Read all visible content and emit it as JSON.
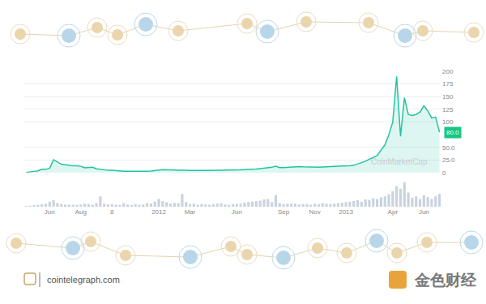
{
  "chart_data": {
    "type": "line",
    "categories": [
      null,
      null,
      null,
      null,
      null,
      null,
      "Jun",
      null,
      null,
      null,
      null,
      null,
      null,
      null,
      "Aug",
      null,
      null,
      null,
      null,
      null,
      null,
      null,
      "8",
      null,
      null,
      null,
      null,
      null,
      null,
      null,
      null,
      null,
      null,
      null,
      "2012",
      null,
      null,
      null,
      null,
      null,
      null,
      null,
      "Mar",
      null,
      null,
      null,
      null,
      null,
      null,
      null,
      null,
      null,
      null,
      null,
      "Jun",
      null,
      null,
      null,
      null,
      null,
      null,
      null,
      null,
      null,
      null,
      null,
      "Sep",
      null,
      null,
      null,
      null,
      null,
      null,
      null,
      "Nov",
      null,
      null,
      null,
      null,
      null,
      null,
      null,
      "2013",
      null,
      null,
      null,
      null,
      null,
      null,
      null,
      null,
      null,
      null,
      null,
      "Apr",
      null,
      null,
      null,
      null,
      null,
      null,
      null,
      "Jun",
      null,
      null,
      null,
      null
    ],
    "series": [
      {
        "type": "line",
        "color": "#22c3a0",
        "values": [
          1,
          1.5,
          3,
          4,
          7,
          7,
          9,
          26,
          22,
          17,
          16,
          14.5,
          14,
          14,
          13,
          10,
          11,
          11,
          8,
          7,
          5,
          5,
          5,
          4,
          3.5,
          3,
          3.2,
          3,
          2.5,
          2.5,
          3,
          3,
          3.5,
          4,
          5.5,
          6.5,
          6.5,
          6,
          5.5,
          5,
          4.5,
          5,
          4.8,
          5,
          5,
          4.8,
          4.9,
          4.9,
          5,
          5.1,
          5,
          5,
          5.1,
          5.2,
          5.3,
          5.8,
          6.5,
          6.7,
          6.8,
          7.5,
          8.5,
          9,
          10,
          11,
          13,
          10.5,
          10.5,
          11,
          12,
          12.3,
          12.5,
          12,
          11.8,
          10.8,
          10.7,
          11,
          11.5,
          12.2,
          12.7,
          13.3,
          13.3,
          13.5,
          13.5,
          14,
          15,
          17.5,
          20,
          23,
          27,
          30,
          34,
          45,
          55,
          75,
          100,
          190,
          72,
          148,
          115,
          113,
          115,
          120,
          132,
          122,
          108,
          110,
          80
        ]
      },
      {
        "type": "bar",
        "axis": "y2",
        "color": "#c9d2de",
        "values": [
          3,
          4,
          6,
          8,
          10,
          12,
          20,
          25,
          14,
          10,
          9,
          8,
          8,
          7,
          9,
          12,
          10,
          8,
          14,
          40,
          12,
          9,
          10,
          8,
          7,
          14,
          9,
          6,
          10,
          8,
          9,
          14,
          12,
          20,
          30,
          22,
          18,
          12,
          15,
          14,
          50,
          18,
          10,
          12,
          8,
          10,
          9,
          8,
          10,
          12,
          14,
          9,
          8,
          10,
          11,
          12,
          16,
          18,
          20,
          22,
          24,
          28,
          30,
          18,
          45,
          14,
          10,
          12,
          11,
          12,
          9,
          10,
          11,
          8,
          12,
          10,
          14,
          12,
          10,
          12,
          14,
          16,
          18,
          20,
          22,
          26,
          20,
          28,
          26,
          32,
          30,
          36,
          40,
          48,
          60,
          80,
          70,
          95,
          55,
          35,
          40,
          30,
          45,
          38,
          30,
          40,
          50
        ]
      }
    ],
    "ylim": [
      0,
      200
    ],
    "yticks": [
      0,
      {
        "value": 25,
        "label": "25.0"
      },
      {
        "value": 50,
        "label": "50.0"
      },
      100,
      125,
      150,
      175,
      200
    ],
    "y2lim": [
      0,
      100
    ],
    "grid": true,
    "annotations": [
      {
        "text": "80.0",
        "y": 80,
        "color": "#16c784"
      }
    ],
    "watermark": "CoinMarketCap",
    "source": "cointelegraph.com",
    "logo_text": "金色财经"
  }
}
